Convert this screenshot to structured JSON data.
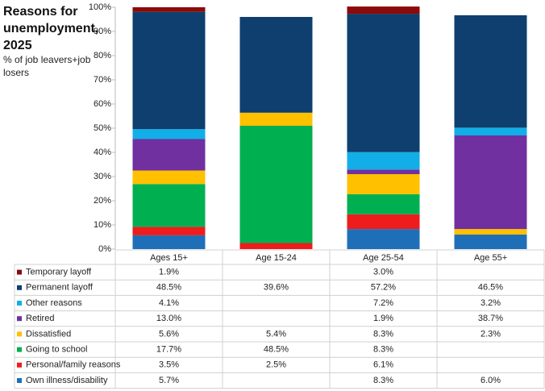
{
  "chart_data": {
    "type": "stacked-bar",
    "title": "Reasons for unemployment, 2025",
    "subtitle": "% of job leavers+job losers",
    "categories": [
      "Ages 15+",
      "Age 15-24",
      "Age 25-54",
      "Age 55+"
    ],
    "ylim": [
      0,
      100
    ],
    "yticks": [
      {
        "value": 0,
        "label": "0%"
      },
      {
        "value": 10,
        "label": "10%"
      },
      {
        "value": 20,
        "label": "20%"
      },
      {
        "value": 30,
        "label": "30%"
      },
      {
        "value": 40,
        "label": "40%"
      },
      {
        "value": 50,
        "label": "50%"
      },
      {
        "value": 60,
        "label": "60%"
      },
      {
        "value": 70,
        "label": "70%"
      },
      {
        "value": 80,
        "label": "80%"
      },
      {
        "value": 90,
        "label": "90%"
      },
      {
        "value": 100,
        "label": "100%"
      }
    ],
    "grid": false,
    "series": [
      {
        "name": "Temporary layoff",
        "color": "#8b0a0a",
        "values": [
          1.9,
          null,
          3.0,
          null
        ],
        "value_labels": [
          "1.9%",
          null,
          "3.0%",
          null
        ]
      },
      {
        "name": "Permanent layoff",
        "color": "#0e3f6e",
        "values": [
          48.5,
          39.6,
          57.2,
          46.5
        ],
        "value_labels": [
          "48.5%",
          "39.6%",
          "57.2%",
          "46.5%"
        ]
      },
      {
        "name": "Other reasons",
        "color": "#12aee8",
        "values": [
          4.1,
          null,
          7.2,
          3.2
        ],
        "value_labels": [
          "4.1%",
          null,
          "7.2%",
          "3.2%"
        ]
      },
      {
        "name": "Retired",
        "color": "#7030a0",
        "values": [
          13.0,
          null,
          1.9,
          38.7
        ],
        "value_labels": [
          "13.0%",
          null,
          "1.9%",
          "38.7%"
        ]
      },
      {
        "name": "Dissatisfied",
        "color": "#ffc000",
        "values": [
          5.6,
          5.4,
          8.3,
          2.3
        ],
        "value_labels": [
          "5.6%",
          "5.4%",
          "8.3%",
          "2.3%"
        ]
      },
      {
        "name": "Going to school",
        "color": "#00b050",
        "values": [
          17.7,
          48.5,
          8.3,
          null
        ],
        "value_labels": [
          "17.7%",
          "48.5%",
          "8.3%",
          null
        ]
      },
      {
        "name": "Personal/family reasons",
        "color": "#ee1c1c",
        "values": [
          3.5,
          2.5,
          6.1,
          null
        ],
        "value_labels": [
          "3.5%",
          "2.5%",
          "6.1%",
          null
        ]
      },
      {
        "name": "Own illness/disability",
        "color": "#1f6fb8",
        "values": [
          5.7,
          null,
          8.3,
          6.0
        ],
        "value_labels": [
          "5.7%",
          null,
          "8.3%",
          "6.0%"
        ]
      }
    ]
  }
}
